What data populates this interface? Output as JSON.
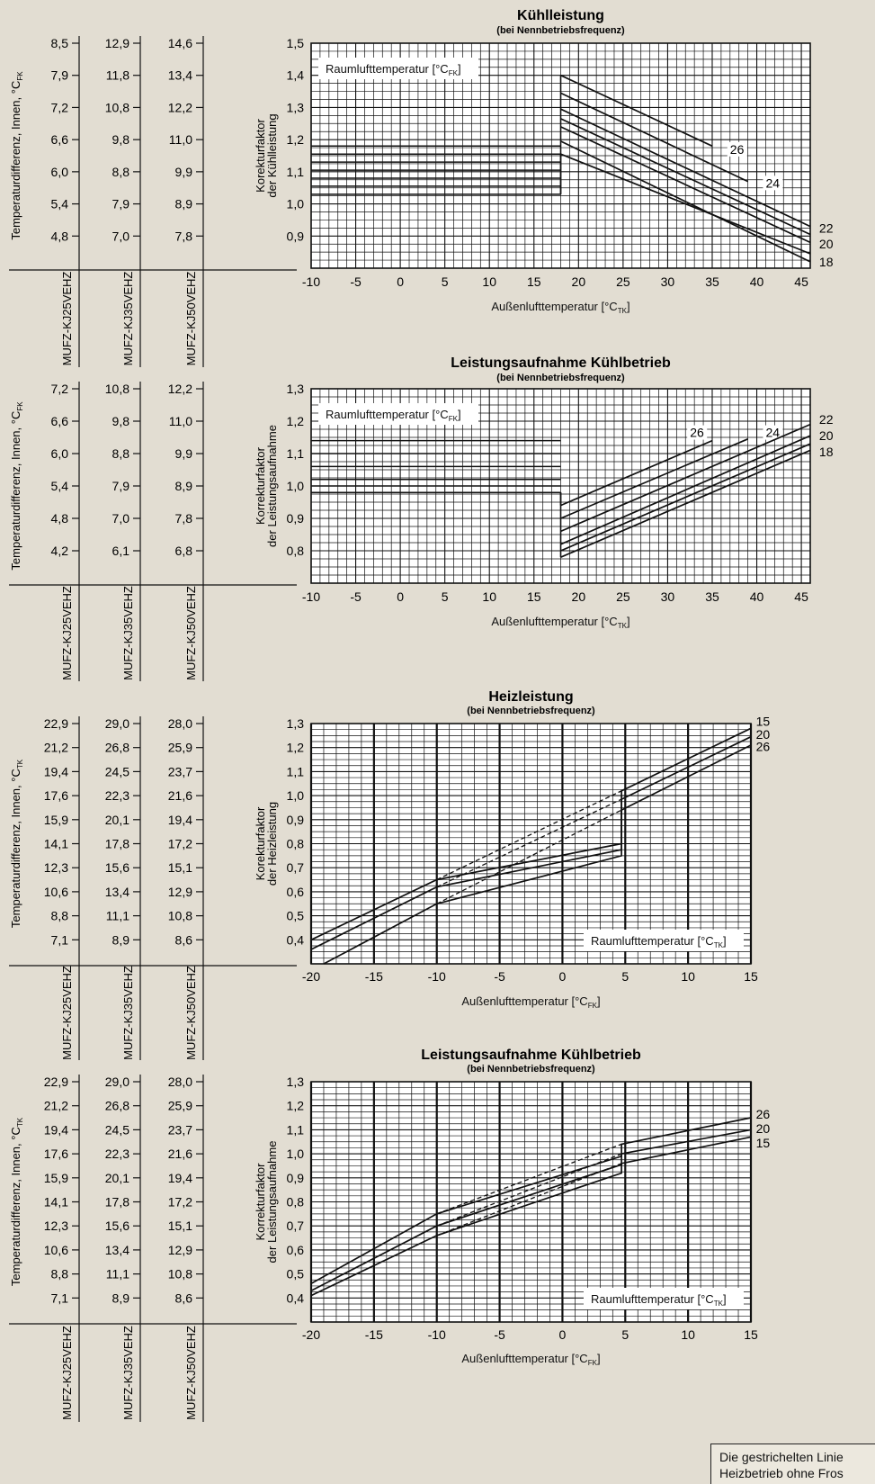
{
  "footnote": {
    "line1": "Die gestrichelten Linie",
    "line2": "Heizbetrieb ohne Fros"
  },
  "chart_data": [
    {
      "type": "line",
      "title": "Kühlleistung",
      "subtitle": "(bei Nennbetriebsfrequenz)",
      "xlabel": "Außenlufttemperatur [°C",
      "xlabel_sub": "TK",
      "ylabel1": "Korekturfaktor",
      "ylabel2": "der Kühlleistung",
      "xlim": [
        -10,
        46
      ],
      "ylim": [
        0.8,
        1.5
      ],
      "xticks": [
        -10,
        -5,
        0,
        5,
        10,
        15,
        20,
        25,
        30,
        35,
        40,
        45
      ],
      "yticks": [
        0.9,
        1.0,
        1.1,
        1.2,
        1.3,
        1.4,
        1.5
      ],
      "ytick_labels": [
        "0,9",
        "1,0",
        "1,1",
        "1,2",
        "1,3",
        "1,4",
        "1,5"
      ],
      "legend_label": "Raumlufttemperatur [°C",
      "legend_sub": "FK",
      "legend_pos": "top-left",
      "flat_levels": [
        1.03,
        1.055,
        1.08,
        1.105,
        1.13,
        1.155,
        1.18
      ],
      "flat_xmax": 18,
      "series": [
        {
          "name": "26",
          "x": [
            18,
            35
          ],
          "y": [
            1.4,
            1.18
          ],
          "style": "solid",
          "label_at": [
            37,
            1.17
          ]
        },
        {
          "name": "24",
          "x": [
            18,
            39
          ],
          "y": [
            1.345,
            1.07
          ],
          "style": "solid",
          "label_at": [
            41,
            1.065
          ]
        },
        {
          "name": "22",
          "x": [
            18,
            46
          ],
          "y": [
            1.295,
            0.93
          ],
          "style": "solid",
          "label_at": [
            47,
            0.925
          ]
        },
        {
          "name": "20",
          "x": [
            18,
            46
          ],
          "y": [
            1.24,
            0.88
          ],
          "style": "solid",
          "label_at": [
            47,
            0.875
          ]
        },
        {
          "name": "18",
          "x": [
            18,
            46
          ],
          "y": [
            1.195,
            0.82
          ],
          "style": "solid",
          "label_at": [
            47,
            0.82
          ]
        },
        {
          "name": "",
          "x": [
            18,
            46
          ],
          "y": [
            1.265,
            0.905
          ],
          "style": "solid"
        },
        {
          "name": "",
          "x": [
            18,
            46
          ],
          "y": [
            1.155,
            0.845
          ],
          "style": "solid"
        }
      ],
      "side_table": {
        "ylabel": "Temperaturdifferenz, Innen, °C",
        "ylabel_sub": "FK",
        "yvalues": [
          1.5,
          1.4,
          1.3,
          1.2,
          1.1,
          1.0,
          0.9
        ],
        "columns": [
          {
            "model": "MUFZ-KJ25VEHZ",
            "values": [
              "8,5",
              "7,9",
              "7,2",
              "6,6",
              "6,0",
              "5,4",
              "4,8"
            ]
          },
          {
            "model": "MUFZ-KJ35VEHZ",
            "values": [
              "12,9",
              "11,8",
              "10,8",
              "9,8",
              "8,8",
              "7,9",
              "7,0"
            ]
          },
          {
            "model": "MUFZ-KJ50VEHZ",
            "values": [
              "14,6",
              "13,4",
              "12,2",
              "11,0",
              "9,9",
              "8,9",
              "7,8"
            ]
          }
        ]
      }
    },
    {
      "type": "line",
      "title": "Leistungsaufnahme Kühlbetrieb",
      "subtitle": "(bei Nennbetriebsfrequenz)",
      "xlabel": "Außenlufttemperatur [°C",
      "xlabel_sub": "TK",
      "ylabel1": "Korrekturfaktor",
      "ylabel2": "der Leistungsaufnahme",
      "xlim": [
        -10,
        46
      ],
      "ylim": [
        0.7,
        1.3
      ],
      "xticks": [
        -10,
        -5,
        0,
        5,
        10,
        15,
        20,
        25,
        30,
        35,
        40,
        45
      ],
      "yticks": [
        0.8,
        0.9,
        1.0,
        1.1,
        1.2,
        1.3
      ],
      "ytick_labels": [
        "0,8",
        "0,9",
        "1,0",
        "1,1",
        "1,2",
        "1,3"
      ],
      "legend_label": "Raumlufttemperatur [°C",
      "legend_sub": "FK",
      "legend_pos": "top-left",
      "flat_levels": [
        0.98,
        1.0,
        1.02,
        1.06,
        1.1,
        1.14
      ],
      "flat_xmax": 18,
      "series": [
        {
          "name": "26",
          "x": [
            18,
            35
          ],
          "y": [
            0.94,
            1.14
          ],
          "style": "solid",
          "label_at": [
            32.5,
            1.165
          ]
        },
        {
          "name": "24",
          "x": [
            18,
            39
          ],
          "y": [
            0.9,
            1.145
          ],
          "style": "solid",
          "label_at": [
            41,
            1.165
          ]
        },
        {
          "name": "22",
          "x": [
            18,
            46
          ],
          "y": [
            0.86,
            1.19
          ],
          "style": "solid",
          "label_at": [
            47,
            1.205
          ]
        },
        {
          "name": "20",
          "x": [
            18,
            46
          ],
          "y": [
            0.82,
            1.155
          ],
          "style": "solid",
          "label_at": [
            47,
            1.155
          ]
        },
        {
          "name": "18",
          "x": [
            18,
            46
          ],
          "y": [
            0.78,
            1.11
          ],
          "style": "solid",
          "label_at": [
            47,
            1.105
          ]
        },
        {
          "name": "",
          "x": [
            18,
            46
          ],
          "y": [
            0.8,
            1.13
          ],
          "style": "solid"
        }
      ],
      "side_table": {
        "ylabel": "Temperaturdifferenz, Innen, °C",
        "ylabel_sub": "FK",
        "yvalues": [
          1.3,
          1.2,
          1.1,
          1.0,
          0.9,
          0.8
        ],
        "columns": [
          {
            "model": "MUFZ-KJ25VEHZ",
            "values": [
              "7,2",
              "6,6",
              "6,0",
              "5,4",
              "4,8",
              "4,2"
            ]
          },
          {
            "model": "MUFZ-KJ35VEHZ",
            "values": [
              "10,8",
              "9,8",
              "8,8",
              "7,9",
              "7,0",
              "6,1"
            ]
          },
          {
            "model": "MUFZ-KJ50VEHZ",
            "values": [
              "12,2",
              "11,0",
              "9,9",
              "8,9",
              "7,8",
              "6,8"
            ]
          }
        ]
      }
    },
    {
      "type": "line",
      "title": "Heizleistung",
      "subtitle": "(bei Nennbetriebsfrequenz)",
      "xlabel": "Außenlufttemperatur [°C",
      "xlabel_sub": "FK",
      "ylabel1": "Korekturfaktor",
      "ylabel2": "der Heizleistung",
      "xlim": [
        -20,
        15
      ],
      "ylim": [
        0.3,
        1.3
      ],
      "xticks": [
        -20,
        -15,
        -10,
        -5,
        0,
        5,
        10,
        15
      ],
      "yticks": [
        0.4,
        0.5,
        0.6,
        0.7,
        0.8,
        0.9,
        1.0,
        1.1,
        1.2,
        1.3
      ],
      "ytick_labels": [
        "0,4",
        "0,5",
        "0,6",
        "0,7",
        "0,8",
        "0,9",
        "1,0",
        "1,1",
        "1,2",
        "1,3"
      ],
      "legend_label": "Raumlufttemperatur [°C",
      "legend_sub": "TK",
      "legend_pos": "bottom-right",
      "series": [
        {
          "name": "15",
          "x": [
            -20,
            -10,
            4.7,
            4.7,
            15
          ],
          "y": [
            0.4,
            0.65,
            0.8,
            1.02,
            1.28
          ],
          "style": "solid",
          "label_at": [
            15.4,
            1.31
          ]
        },
        {
          "name": "20",
          "x": [
            -20,
            -10,
            4.7,
            4.7,
            15
          ],
          "y": [
            0.36,
            0.62,
            0.775,
            0.985,
            1.245
          ],
          "style": "solid",
          "label_at": [
            15.4,
            1.255
          ]
        },
        {
          "name": "26",
          "x": [
            -19,
            -10,
            4.7,
            4.7,
            15
          ],
          "y": [
            0.3,
            0.55,
            0.75,
            0.94,
            1.21
          ],
          "style": "solid",
          "label_at": [
            15.4,
            1.205
          ]
        },
        {
          "name": "",
          "x": [
            -10,
            4.7
          ],
          "y": [
            0.65,
            1.02
          ],
          "style": "dashed"
        },
        {
          "name": "",
          "x": [
            -10,
            4.7
          ],
          "y": [
            0.62,
            0.985
          ],
          "style": "dashed"
        },
        {
          "name": "",
          "x": [
            -10,
            4.7
          ],
          "y": [
            0.55,
            0.94
          ],
          "style": "dashed"
        }
      ],
      "side_table": {
        "ylabel": "Temperaturdifferenz, Innen, °C",
        "ylabel_sub": "TK",
        "yvalues": [
          1.3,
          1.2,
          1.1,
          1.0,
          0.9,
          0.8,
          0.7,
          0.6,
          0.5,
          0.4
        ],
        "columns": [
          {
            "model": "MUFZ-KJ25VEHZ",
            "values": [
              "22,9",
              "21,2",
              "19,4",
              "17,6",
              "15,9",
              "14,1",
              "12,3",
              "10,6",
              "8,8",
              "7,1"
            ]
          },
          {
            "model": "MUFZ-KJ35VEHZ",
            "values": [
              "29,0",
              "26,8",
              "24,5",
              "22,3",
              "20,1",
              "17,8",
              "15,6",
              "13,4",
              "11,1",
              "8,9"
            ]
          },
          {
            "model": "MUFZ-KJ50VEHZ",
            "values": [
              "28,0",
              "25,9",
              "23,7",
              "21,6",
              "19,4",
              "17,2",
              "15,1",
              "12,9",
              "10,8",
              "8,6"
            ]
          }
        ]
      }
    },
    {
      "type": "line",
      "title": "Leistungsaufnahme Kühlbetrieb",
      "subtitle": "(bei Nennbetriebsfrequenz)",
      "xlabel": "Außenlufttemperatur [°C",
      "xlabel_sub": "FK",
      "ylabel1": "Korrekturfaktor",
      "ylabel2": "der Leistungsaufnahme",
      "xlim": [
        -20,
        15
      ],
      "ylim": [
        0.3,
        1.3
      ],
      "xticks": [
        -20,
        -15,
        -10,
        -5,
        0,
        5,
        10,
        15
      ],
      "yticks": [
        0.4,
        0.5,
        0.6,
        0.7,
        0.8,
        0.9,
        1.0,
        1.1,
        1.2,
        1.3
      ],
      "ytick_labels": [
        "0,4",
        "0,5",
        "0,6",
        "0,7",
        "0,8",
        "0,9",
        "1,0",
        "1,1",
        "1,2",
        "1,3"
      ],
      "legend_label": "Raumlufttemperatur [°C",
      "legend_sub": "TK",
      "legend_pos": "bottom-right",
      "series": [
        {
          "name": "26",
          "x": [
            -20,
            -10,
            4.7,
            4.7,
            15
          ],
          "y": [
            0.46,
            0.75,
            0.99,
            1.04,
            1.15
          ],
          "style": "solid",
          "label_at": [
            15.4,
            1.165
          ]
        },
        {
          "name": "20",
          "x": [
            -20,
            -10,
            4.7,
            4.7,
            15
          ],
          "y": [
            0.43,
            0.7,
            0.955,
            1.0,
            1.1
          ],
          "style": "solid",
          "label_at": [
            15.4,
            1.105
          ]
        },
        {
          "name": "15",
          "x": [
            -20,
            -10,
            4.7,
            4.7,
            15
          ],
          "y": [
            0.41,
            0.66,
            0.92,
            0.96,
            1.07
          ],
          "style": "solid",
          "label_at": [
            15.4,
            1.045
          ]
        },
        {
          "name": "",
          "x": [
            -10,
            4.7
          ],
          "y": [
            0.75,
            1.04
          ],
          "style": "dashed"
        },
        {
          "name": "",
          "x": [
            -10,
            4.7
          ],
          "y": [
            0.7,
            1.0
          ],
          "style": "dashed"
        },
        {
          "name": "",
          "x": [
            -10,
            4.7
          ],
          "y": [
            0.66,
            0.96
          ],
          "style": "dashed"
        }
      ],
      "side_table": {
        "ylabel": "Temperaturdifferenz, Innen, °C",
        "ylabel_sub": "TK",
        "yvalues": [
          1.3,
          1.2,
          1.1,
          1.0,
          0.9,
          0.8,
          0.7,
          0.6,
          0.5,
          0.4
        ],
        "columns": [
          {
            "model": "MUFZ-KJ25VEHZ",
            "values": [
              "22,9",
              "21,2",
              "19,4",
              "17,6",
              "15,9",
              "14,1",
              "12,3",
              "10,6",
              "8,8",
              "7,1"
            ]
          },
          {
            "model": "MUFZ-KJ35VEHZ",
            "values": [
              "29,0",
              "26,8",
              "24,5",
              "22,3",
              "20,1",
              "17,8",
              "15,6",
              "13,4",
              "11,1",
              "8,9"
            ]
          },
          {
            "model": "MUFZ-KJ50VEHZ",
            "values": [
              "28,0",
              "25,9",
              "23,7",
              "21,6",
              "19,4",
              "17,2",
              "15,1",
              "12,9",
              "10,8",
              "8,6"
            ]
          }
        ]
      }
    }
  ]
}
